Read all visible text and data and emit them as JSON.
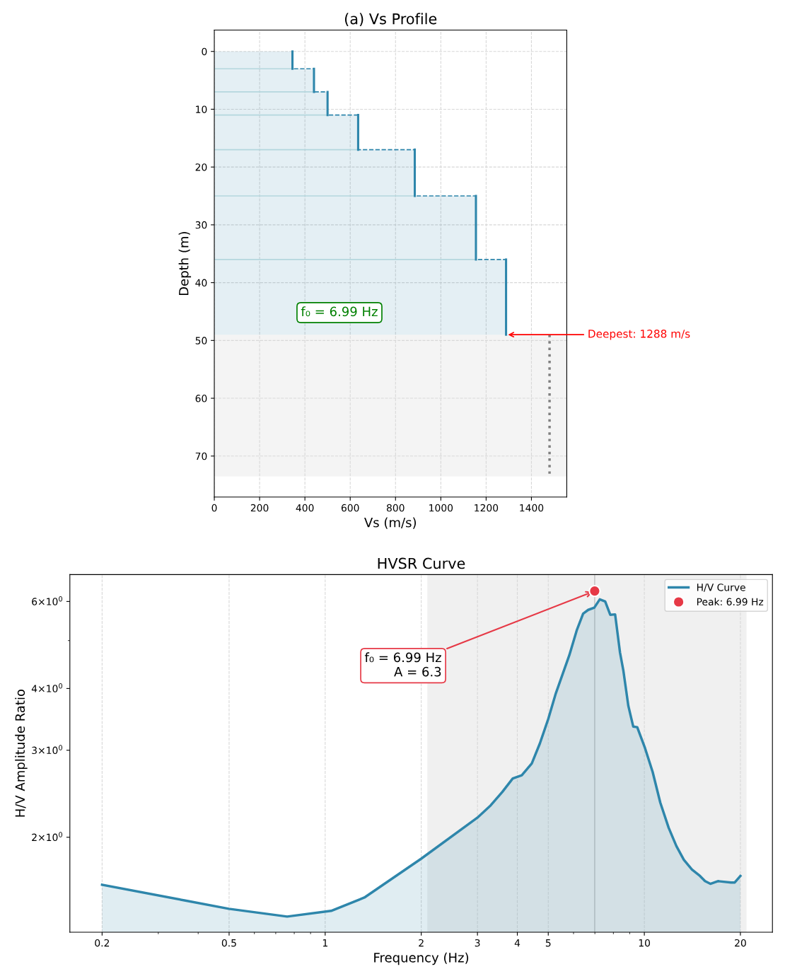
{
  "chart_data": [
    {
      "type": "line",
      "title": "(a) Vs Profile",
      "xlabel": "Vs (m/s)",
      "ylabel": "Depth (m)",
      "orientation": "horizontal",
      "xlim": [
        0,
        1556
      ],
      "xticks": [
        0,
        200,
        400,
        600,
        800,
        1000,
        1200,
        1400
      ],
      "ylim": [
        77.1,
        -3.7
      ],
      "yticks": [
        0,
        10,
        20,
        30,
        40,
        50,
        60,
        70
      ],
      "grid": true,
      "series": [
        {
          "type": "area",
          "color": "#2e86ab",
          "line_style": "solid",
          "x": [
            0,
            3,
            3,
            7,
            7,
            11,
            11,
            17,
            17,
            25,
            25,
            36,
            36,
            49
          ],
          "values": [
            345,
            345,
            440,
            440,
            500,
            500,
            635,
            635,
            885,
            885,
            1155,
            1155,
            1288,
            1288
          ]
        },
        {
          "color": "#808080",
          "line_style": "dotted",
          "x": [
            49,
            73.5
          ],
          "values": [
            1480,
            1480
          ]
        }
      ],
      "bands": [
        {
          "axis": "y",
          "from": 49,
          "to": 73.5,
          "color": "#f4f4f4"
        }
      ],
      "ref_lines": [
        {
          "axis": "y",
          "value": 3,
          "color": "#c8e4e6"
        },
        {
          "axis": "y",
          "value": 7,
          "color": "#c8e4e6"
        },
        {
          "axis": "y",
          "value": 11,
          "color": "#c8e4e6"
        },
        {
          "axis": "y",
          "value": 17,
          "color": "#c8e4e6"
        },
        {
          "axis": "y",
          "value": 25,
          "color": "#c8e4e6"
        },
        {
          "axis": "y",
          "value": 36,
          "color": "#c8e4e6"
        }
      ],
      "annotations": [
        "f₀ = 6.99 Hz",
        {
          "text": "Deepest: 1288 m/s",
          "x": 1288,
          "y": 49
        }
      ]
    },
    {
      "type": "area",
      "title": "HVSR Curve",
      "xlabel": "Frequency (Hz)",
      "ylabel": "H/V Amplitude Ratio",
      "log": "xy",
      "xlim": [
        0.1585,
        25.2
      ],
      "xticks": [
        0.2,
        0.5,
        1,
        2,
        3,
        4,
        5,
        10,
        20
      ],
      "ylim": [
        1.285,
        6.8
      ],
      "yticks": [
        {
          "value": 2,
          "label": "2×10$^{0}$"
        },
        {
          "value": 3,
          "label": "3×10$^{0}$"
        },
        {
          "value": 4,
          "label": "4×10$^{0}$"
        },
        {
          "value": 6,
          "label": "6×10$^{0}$"
        }
      ],
      "grid": "x",
      "legend": "top right",
      "series": [
        {
          "name": "H/V Curve",
          "color": "#2e86ab",
          "line_style": "solid",
          "x": [
            0.2,
            0.499,
            0.76,
            1.044,
            1.327,
            2.0,
            2.996,
            3.3,
            3.59,
            3.87,
            4.13,
            4.44,
            4.71,
            5.0,
            5.28,
            5.82,
            6.15,
            6.43,
            6.67,
            6.97,
            7.25,
            7.54,
            7.82,
            8.1,
            8.39,
            8.6,
            8.91,
            9.23,
            9.5,
            10.05,
            10.62,
            11.22,
            11.92,
            12.6,
            13.3,
            14.1,
            14.94,
            15.5,
            16.1,
            17.0,
            18.7,
            19.2,
            20.0
          ],
          "values": [
            1.603,
            1.433,
            1.382,
            1.419,
            1.51,
            1.81,
            2.19,
            2.32,
            2.47,
            2.63,
            2.67,
            2.82,
            3.1,
            3.47,
            3.91,
            4.67,
            5.26,
            5.67,
            5.77,
            5.83,
            6.06,
            6.0,
            5.64,
            5.65,
            4.73,
            4.34,
            3.69,
            3.35,
            3.34,
            3.03,
            2.71,
            2.35,
            2.09,
            1.92,
            1.8,
            1.72,
            1.67,
            1.63,
            1.61,
            1.63,
            1.62,
            1.62,
            1.67
          ]
        },
        {
          "type": "scatter",
          "name": "Peak: 6.99 Hz",
          "color": "#e63946",
          "marker": "circle",
          "x": [
            6.99
          ],
          "values": [
            6.3
          ]
        }
      ],
      "ref_lines": [
        {
          "axis": "x",
          "value": 6.99,
          "color": "#c0c0c0"
        }
      ],
      "bands": [
        {
          "axis": "x",
          "from": 2.09,
          "to": 20.9,
          "color": "#f0f0f0"
        }
      ],
      "annotations": [
        {
          "text": "f₀ = 6.99 Hz\nA = 6.3",
          "x": 6.99,
          "y": 6.3
        }
      ]
    }
  ]
}
